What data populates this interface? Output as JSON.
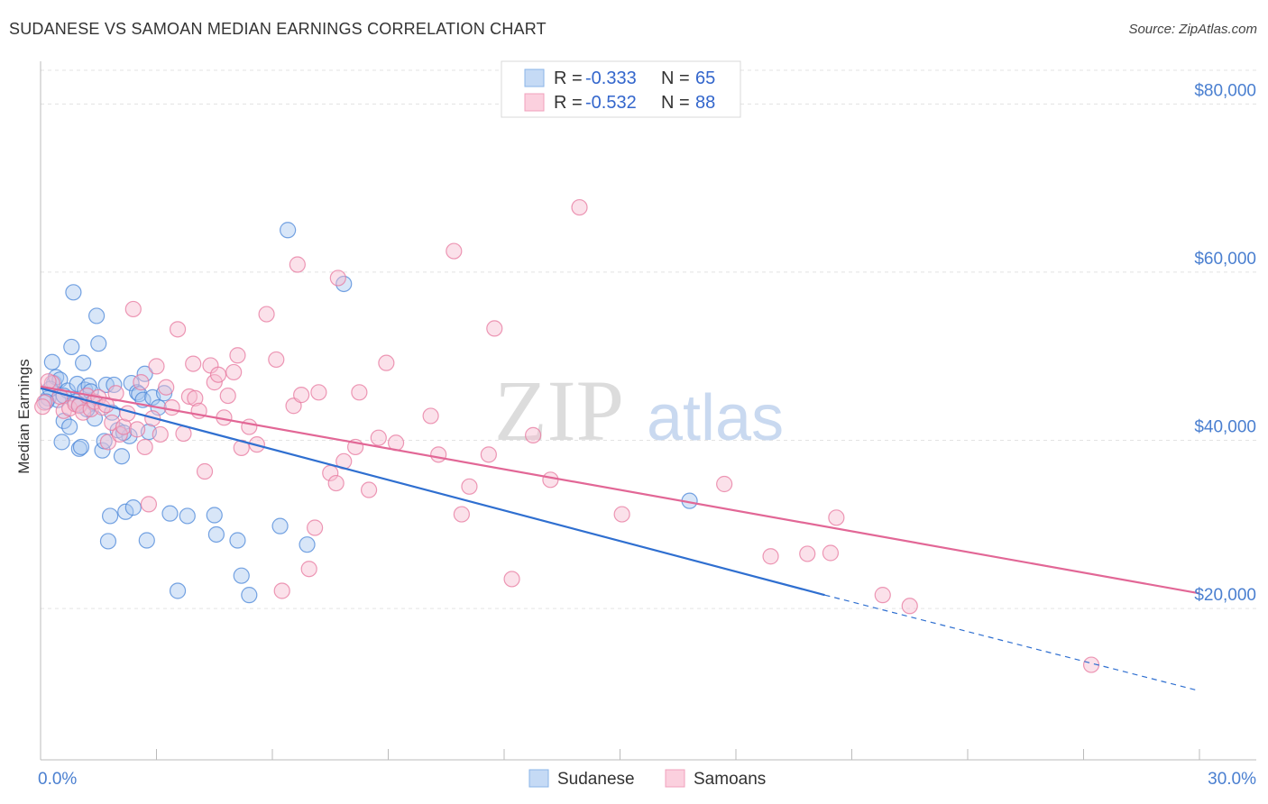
{
  "title": "SUDANESE VS SAMOAN MEDIAN EARNINGS CORRELATION CHART",
  "source": "Source: ZipAtlas.com",
  "watermark": {
    "zip": "ZIP",
    "atlas": "atlas"
  },
  "legend": {
    "rows": [
      {
        "r_label": "R =",
        "r_value": "-0.333",
        "n_label": "N =",
        "n_value": "65",
        "color": "#8ab4e8",
        "fill": "#c5daf5"
      },
      {
        "r_label": "R =",
        "r_value": "-0.532",
        "n_label": "N =",
        "n_value": "88",
        "color": "#f0a0bc",
        "fill": "#fbd0de"
      }
    ]
  },
  "bottom_legend": [
    {
      "label": "Sudanese",
      "color": "#8ab4e8",
      "fill": "#c5daf5"
    },
    {
      "label": "Samoans",
      "color": "#f0a0bc",
      "fill": "#fbd0de"
    }
  ],
  "chart_data": {
    "type": "scatter",
    "title": "SUDANESE VS SAMOAN MEDIAN EARNINGS CORRELATION CHART",
    "xlabel": "",
    "ylabel": "Median Earnings",
    "xlim": [
      0,
      30
    ],
    "ylim": [
      2000,
      84000
    ],
    "x_tick_labels": [
      "0.0%",
      "30.0%"
    ],
    "y_ticks": [
      20000,
      40000,
      60000,
      80000
    ],
    "y_tick_labels": [
      "$20,000",
      "$40,000",
      "$60,000",
      "$80,000"
    ],
    "grid": true,
    "legend_position": "top-center",
    "series": [
      {
        "name": "Sudanese",
        "color": "#4a86d8",
        "fill": "#a9c8f0",
        "trend": {
          "x0": 0,
          "y0": 46200,
          "x1": 20.3,
          "y1": 21600,
          "dash_to_x": 30,
          "dash_to_y": 10200,
          "color": "#2f6fd0"
        },
        "points": [
          [
            0.2,
            45000
          ],
          [
            0.3,
            49300
          ],
          [
            0.35,
            46800
          ],
          [
            0.4,
            47500
          ],
          [
            0.45,
            44800
          ],
          [
            0.5,
            47200
          ],
          [
            0.55,
            39800
          ],
          [
            0.6,
            42300
          ],
          [
            0.7,
            45900
          ],
          [
            0.75,
            41600
          ],
          [
            0.8,
            51100
          ],
          [
            0.85,
            57600
          ],
          [
            0.9,
            44600
          ],
          [
            0.95,
            46700
          ],
          [
            1.0,
            39000
          ],
          [
            1.05,
            39200
          ],
          [
            1.1,
            49200
          ],
          [
            1.15,
            46000
          ],
          [
            1.25,
            46500
          ],
          [
            1.3,
            45800
          ],
          [
            1.35,
            44500
          ],
          [
            1.4,
            42600
          ],
          [
            1.45,
            54800
          ],
          [
            1.5,
            51500
          ],
          [
            1.6,
            38800
          ],
          [
            1.65,
            39900
          ],
          [
            1.7,
            46600
          ],
          [
            1.75,
            28000
          ],
          [
            1.8,
            31000
          ],
          [
            1.85,
            43300
          ],
          [
            1.9,
            46600
          ],
          [
            2.0,
            41200
          ],
          [
            2.1,
            38100
          ],
          [
            2.2,
            31500
          ],
          [
            2.3,
            40500
          ],
          [
            2.35,
            46800
          ],
          [
            2.4,
            32000
          ],
          [
            2.5,
            45700
          ],
          [
            2.55,
            45500
          ],
          [
            2.65,
            44800
          ],
          [
            2.7,
            47900
          ],
          [
            2.75,
            28100
          ],
          [
            2.8,
            41000
          ],
          [
            2.9,
            45100
          ],
          [
            3.05,
            43900
          ],
          [
            3.2,
            45600
          ],
          [
            3.35,
            31300
          ],
          [
            3.55,
            22100
          ],
          [
            3.8,
            31000
          ],
          [
            4.5,
            31100
          ],
          [
            4.55,
            28800
          ],
          [
            5.1,
            28100
          ],
          [
            5.2,
            23900
          ],
          [
            5.4,
            21600
          ],
          [
            6.2,
            29800
          ],
          [
            6.4,
            65000
          ],
          [
            6.9,
            27600
          ],
          [
            7.85,
            58600
          ],
          [
            0.25,
            46100
          ],
          [
            0.6,
            45300
          ],
          [
            1.2,
            43700
          ],
          [
            1.0,
            44200
          ],
          [
            2.15,
            40900
          ],
          [
            16.8,
            32800
          ],
          [
            0.15,
            44600
          ]
        ]
      },
      {
        "name": "Samoans",
        "color": "#e7779e",
        "fill": "#f7bcd0",
        "trend": {
          "x0": 0,
          "y0": 46400,
          "x1": 30,
          "y1": 21800,
          "color": "#e26796"
        },
        "points": [
          [
            0.1,
            44500
          ],
          [
            0.3,
            46800
          ],
          [
            0.5,
            45200
          ],
          [
            0.6,
            43500
          ],
          [
            0.75,
            43800
          ],
          [
            0.9,
            44300
          ],
          [
            1.0,
            44100
          ],
          [
            1.1,
            43300
          ],
          [
            1.2,
            45300
          ],
          [
            1.3,
            43700
          ],
          [
            1.4,
            44600
          ],
          [
            1.5,
            45100
          ],
          [
            1.6,
            43900
          ],
          [
            1.75,
            39800
          ],
          [
            1.85,
            42100
          ],
          [
            1.95,
            45600
          ],
          [
            2.05,
            40700
          ],
          [
            2.15,
            41600
          ],
          [
            2.25,
            43200
          ],
          [
            2.4,
            55600
          ],
          [
            2.5,
            41300
          ],
          [
            2.6,
            46900
          ],
          [
            2.7,
            39200
          ],
          [
            2.8,
            32400
          ],
          [
            2.9,
            42600
          ],
          [
            3.0,
            48800
          ],
          [
            3.1,
            40700
          ],
          [
            3.25,
            46300
          ],
          [
            3.4,
            43900
          ],
          [
            3.55,
            53200
          ],
          [
            3.7,
            40800
          ],
          [
            3.85,
            45200
          ],
          [
            3.95,
            49100
          ],
          [
            4.0,
            45000
          ],
          [
            4.1,
            43500
          ],
          [
            4.25,
            36300
          ],
          [
            4.4,
            48900
          ],
          [
            4.5,
            46900
          ],
          [
            4.6,
            47800
          ],
          [
            4.75,
            42700
          ],
          [
            4.85,
            45300
          ],
          [
            5.0,
            48100
          ],
          [
            5.1,
            50100
          ],
          [
            5.2,
            39100
          ],
          [
            5.4,
            41600
          ],
          [
            5.6,
            39500
          ],
          [
            5.85,
            55000
          ],
          [
            6.1,
            49600
          ],
          [
            6.25,
            22100
          ],
          [
            6.55,
            44100
          ],
          [
            6.65,
            60900
          ],
          [
            6.75,
            45400
          ],
          [
            6.95,
            24700
          ],
          [
            7.1,
            29600
          ],
          [
            7.2,
            45700
          ],
          [
            7.5,
            36100
          ],
          [
            7.65,
            34900
          ],
          [
            7.7,
            59300
          ],
          [
            7.85,
            37500
          ],
          [
            8.15,
            39200
          ],
          [
            8.25,
            45700
          ],
          [
            8.5,
            34100
          ],
          [
            8.75,
            40300
          ],
          [
            8.95,
            49200
          ],
          [
            9.2,
            39700
          ],
          [
            10.1,
            42900
          ],
          [
            10.3,
            38300
          ],
          [
            10.7,
            62500
          ],
          [
            10.9,
            31200
          ],
          [
            11.1,
            34500
          ],
          [
            11.6,
            38300
          ],
          [
            11.75,
            53300
          ],
          [
            12.2,
            23500
          ],
          [
            12.75,
            40600
          ],
          [
            13.2,
            35300
          ],
          [
            13.95,
            67700
          ],
          [
            15.05,
            31200
          ],
          [
            17.7,
            34800
          ],
          [
            18.9,
            26200
          ],
          [
            19.85,
            26500
          ],
          [
            20.45,
            26600
          ],
          [
            20.6,
            30800
          ],
          [
            21.8,
            21600
          ],
          [
            22.5,
            20300
          ],
          [
            27.2,
            13300
          ],
          [
            0.2,
            47000
          ],
          [
            1.7,
            44200
          ],
          [
            0.05,
            44000
          ]
        ]
      }
    ]
  }
}
